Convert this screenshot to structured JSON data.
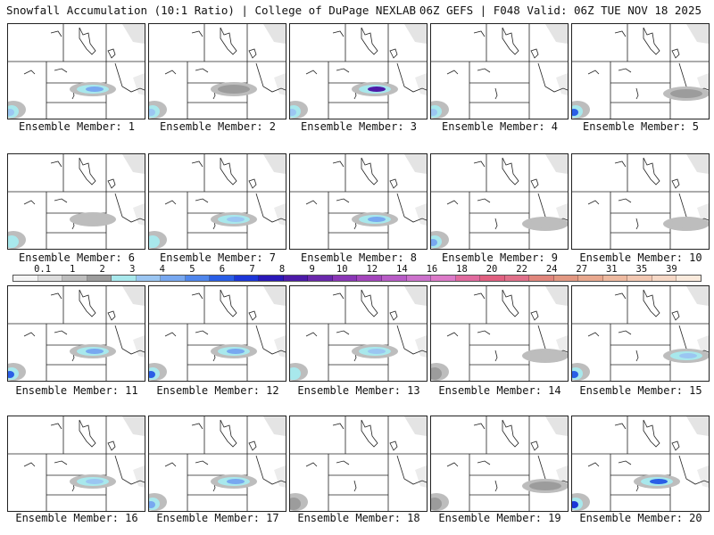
{
  "header": {
    "title_left": "Snowfall Accumulation (10:1 Ratio) | College of DuPage NEXLAB",
    "title_right": "06Z GEFS | F048 Valid: 06Z TUE NOV 18 2025"
  },
  "chart_data": {
    "type": "heatmap",
    "title": "Snowfall Accumulation (10:1 Ratio)",
    "source": "College of DuPage NEXLAB",
    "model": "06Z GEFS",
    "forecast_hour": "F048",
    "valid": "Valid: 06Z TUE NOV 18 2025",
    "colorbar": {
      "tick_labels": [
        "0.1",
        "1",
        "2",
        "3",
        "4",
        "5",
        "6",
        "7",
        "8",
        "9",
        "10",
        "12",
        "14",
        "16",
        "18",
        "20",
        "22",
        "24",
        "27",
        "31",
        "35",
        "39"
      ],
      "colors": [
        "#f4f4f4",
        "#dcdcdc",
        "#bdbdbd",
        "#9c9c9c",
        "#a8e8ec",
        "#9bc6f2",
        "#78a8f0",
        "#4f86ec",
        "#2a5ee6",
        "#1c36d8",
        "#2a18b8",
        "#4c1aa8",
        "#6a28ac",
        "#8a36b6",
        "#a446bc",
        "#b85cc6",
        "#cc72cc",
        "#dc7ac8",
        "#e06a9e",
        "#e06080",
        "#e0708a",
        "#e0867c",
        "#e29882",
        "#e8a88e",
        "#eebaa0",
        "#f2c8b2",
        "#f6d8c6",
        "#faeadc"
      ]
    },
    "panels": [
      {
        "member": 1,
        "label": "Ensemble Member: 1",
        "max_inches": 5,
        "band": "central",
        "southwest": 4
      },
      {
        "member": 2,
        "label": "Ensemble Member: 2",
        "max_inches": 2,
        "band": "central",
        "southwest": 4
      },
      {
        "member": 3,
        "label": "Ensemble Member: 3",
        "max_inches": 9,
        "band": "central",
        "southwest": 4
      },
      {
        "member": 4,
        "label": "Ensemble Member: 4",
        "max_inches": 2,
        "band": "none",
        "southwest": 4
      },
      {
        "member": 5,
        "label": "Ensemble Member: 5",
        "max_inches": 2,
        "band": "east",
        "southwest": 6
      },
      {
        "member": 6,
        "label": "Ensemble Member: 6",
        "max_inches": 1,
        "band": "central",
        "southwest": 3
      },
      {
        "member": 7,
        "label": "Ensemble Member: 7",
        "max_inches": 4,
        "band": "central",
        "southwest": 3
      },
      {
        "member": 8,
        "label": "Ensemble Member: 8",
        "max_inches": 5,
        "band": "central",
        "southwest": 0
      },
      {
        "member": 9,
        "label": "Ensemble Member: 9",
        "max_inches": 1,
        "band": "east",
        "southwest": 5
      },
      {
        "member": 10,
        "label": "Ensemble Member: 10",
        "max_inches": 1,
        "band": "east",
        "southwest": 0
      },
      {
        "member": 11,
        "label": "Ensemble Member: 11",
        "max_inches": 5,
        "band": "central",
        "southwest": 6
      },
      {
        "member": 12,
        "label": "Ensemble Member: 12",
        "max_inches": 5,
        "band": "central",
        "southwest": 6
      },
      {
        "member": 13,
        "label": "Ensemble Member: 13",
        "max_inches": 4,
        "band": "central",
        "southwest": 3
      },
      {
        "member": 14,
        "label": "Ensemble Member: 14",
        "max_inches": 1,
        "band": "east",
        "southwest": 2
      },
      {
        "member": 15,
        "label": "Ensemble Member: 15",
        "max_inches": 4,
        "band": "east",
        "southwest": 6
      },
      {
        "member": 16,
        "label": "Ensemble Member: 16",
        "max_inches": 4,
        "band": "central",
        "southwest": 0
      },
      {
        "member": 17,
        "label": "Ensemble Member: 17",
        "max_inches": 5,
        "band": "central",
        "southwest": 5
      },
      {
        "member": 18,
        "label": "Ensemble Member: 18",
        "max_inches": 1,
        "band": "none",
        "southwest": 2
      },
      {
        "member": 19,
        "label": "Ensemble Member: 19",
        "max_inches": 2,
        "band": "east",
        "southwest": 2
      },
      {
        "member": 20,
        "label": "Ensemble Member: 20",
        "max_inches": 6,
        "band": "central",
        "southwest": 7
      }
    ]
  }
}
